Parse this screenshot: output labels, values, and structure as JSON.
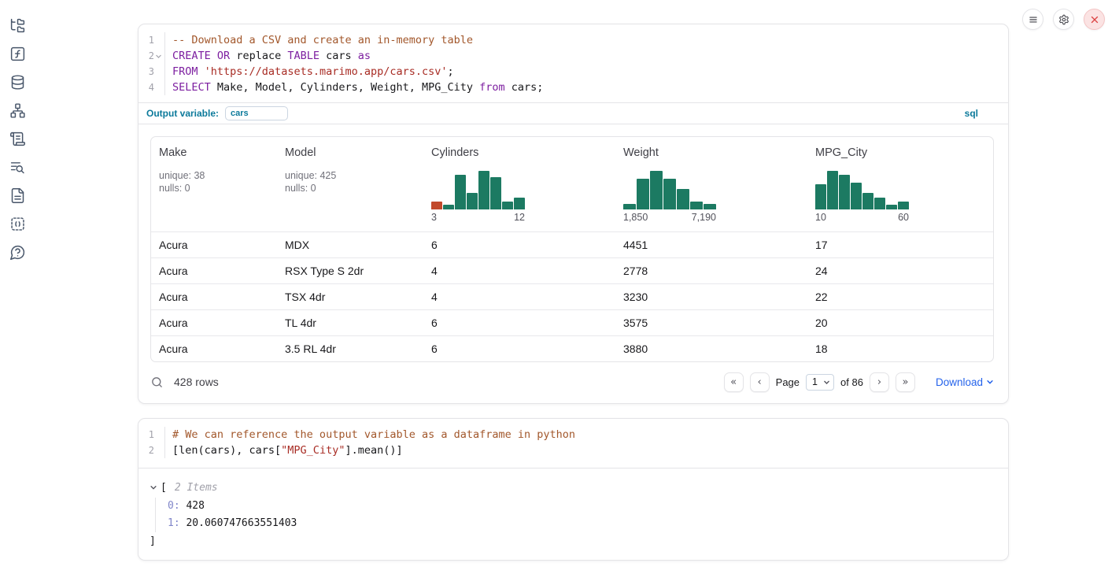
{
  "colors": {
    "accent_blue": "#2563eb",
    "sql_label_teal": "#0c7a9b",
    "histogram_bar": "#1c7a62",
    "histogram_first_bar": "#c2492b",
    "close_button_red": "#dc4444"
  },
  "sidebar": {
    "icons": [
      "file-tree",
      "variables",
      "datasources",
      "dependency-graph",
      "scratchpad",
      "logs",
      "documentation",
      "snippets",
      "help"
    ]
  },
  "window_controls": {
    "icons": [
      "menu",
      "settings",
      "close"
    ]
  },
  "cells": [
    {
      "language": "sql",
      "code_lines": [
        {
          "num": "1",
          "fold": false,
          "tokens": [
            [
              "comment",
              "-- Download a CSV and create an in-memory table"
            ]
          ]
        },
        {
          "num": "2",
          "fold": true,
          "tokens": [
            [
              "keyword",
              "CREATE"
            ],
            [
              "plain",
              " "
            ],
            [
              "keyword",
              "OR"
            ],
            [
              "plain",
              " replace "
            ],
            [
              "keyword",
              "TABLE"
            ],
            [
              "plain",
              " cars "
            ],
            [
              "keyword",
              "as"
            ]
          ]
        },
        {
          "num": "3",
          "fold": false,
          "tokens": [
            [
              "keyword",
              "FROM"
            ],
            [
              "plain",
              " "
            ],
            [
              "string",
              "'https://datasets.marimo.app/cars.csv'"
            ],
            [
              "plain",
              ";"
            ]
          ]
        },
        {
          "num": "4",
          "fold": false,
          "tokens": [
            [
              "keyword",
              "SELECT"
            ],
            [
              "plain",
              " Make, Model, Cylinders, Weight, MPG_City "
            ],
            [
              "keyword",
              "from"
            ],
            [
              "plain",
              " cars;"
            ]
          ]
        }
      ],
      "output_variable_label": "Output variable:",
      "output_variable_value": "cars",
      "language_badge": "sql"
    },
    {
      "language": "python",
      "code_lines": [
        {
          "num": "1",
          "fold": false,
          "tokens": [
            [
              "comment",
              "# We can reference the output variable as a dataframe in python"
            ]
          ]
        },
        {
          "num": "2",
          "fold": false,
          "tokens": [
            [
              "plain",
              "[len(cars), cars["
            ],
            [
              "string",
              "\"MPG_City\""
            ],
            [
              "plain",
              "].mean()]"
            ]
          ]
        }
      ]
    }
  ],
  "table": {
    "columns": [
      {
        "name": "Make",
        "stats": [
          "unique: 38",
          "nulls: 0"
        ]
      },
      {
        "name": "Model",
        "stats": [
          "unique: 425",
          "nulls: 0"
        ]
      },
      {
        "name": "Cylinders",
        "histogram": {
          "values": [
            0.2,
            0.12,
            0.85,
            0.4,
            0.95,
            0.78,
            0.2,
            0.28
          ],
          "first_bar_color": "#c2492b",
          "min_label": "3",
          "max_label": "12"
        }
      },
      {
        "name": "Weight",
        "histogram": {
          "values": [
            0.13,
            0.75,
            0.95,
            0.75,
            0.5,
            0.2,
            0.13
          ],
          "min_label": "1,850",
          "max_label": "7,190"
        }
      },
      {
        "name": "MPG_City",
        "histogram": {
          "values": [
            0.62,
            0.95,
            0.85,
            0.65,
            0.4,
            0.28,
            0.12,
            0.2
          ],
          "min_label": "10",
          "max_label": "60"
        }
      }
    ],
    "rows": [
      [
        "Acura",
        "MDX",
        "6",
        "4451",
        "17"
      ],
      [
        "Acura",
        "RSX Type S 2dr",
        "4",
        "2778",
        "24"
      ],
      [
        "Acura",
        "TSX 4dr",
        "4",
        "3230",
        "22"
      ],
      [
        "Acura",
        "TL 4dr",
        "6",
        "3575",
        "20"
      ],
      [
        "Acura",
        "3.5 RL 4dr",
        "6",
        "3880",
        "18"
      ]
    ],
    "footer": {
      "row_count": "428 rows",
      "page_label": "Page",
      "page_value": "1",
      "of_label": "of 86",
      "download_label": "Download"
    }
  },
  "chart_data": [
    {
      "type": "bar",
      "title": "Cylinders column histogram",
      "x_range": [
        3,
        12
      ],
      "tick_labels": [
        "3",
        "12"
      ],
      "values": [
        0.2,
        0.12,
        0.85,
        0.4,
        0.95,
        0.78,
        0.2,
        0.28
      ],
      "note": "relative bin heights; first bin highlighted orange"
    },
    {
      "type": "bar",
      "title": "Weight column histogram",
      "x_range": [
        1850,
        7190
      ],
      "tick_labels": [
        "1,850",
        "7,190"
      ],
      "values": [
        0.13,
        0.75,
        0.95,
        0.75,
        0.5,
        0.2,
        0.13
      ],
      "note": "relative bin heights"
    },
    {
      "type": "bar",
      "title": "MPG_City column histogram",
      "x_range": [
        10,
        60
      ],
      "tick_labels": [
        "10",
        "60"
      ],
      "values": [
        0.62,
        0.95,
        0.85,
        0.65,
        0.4,
        0.28,
        0.12,
        0.2
      ],
      "note": "relative bin heights"
    }
  ],
  "tree_output": {
    "open_bracket": "[",
    "items_label": "2 Items",
    "items": [
      {
        "key": "0",
        "value": "428"
      },
      {
        "key": "1",
        "value": "20.060747663551403"
      }
    ],
    "close_bracket": "]"
  }
}
